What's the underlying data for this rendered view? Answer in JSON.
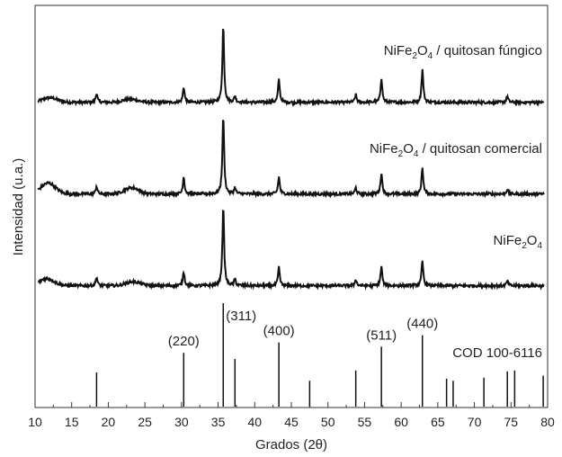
{
  "chart_data": {
    "type": "line",
    "xlabel": "Grados (2θ)",
    "ylabel": "Intensidad (u.a.)",
    "xlim": [
      10,
      80
    ],
    "x_ticks": [
      10,
      15,
      20,
      25,
      30,
      35,
      40,
      45,
      50,
      55,
      60,
      65,
      70,
      75,
      80
    ],
    "y_ticks_shown": false,
    "grid": false,
    "series": [
      {
        "name": "NiFe2O4 / quitosan fúngico",
        "label_parts": [
          "NiFe",
          "2",
          "O",
          "4",
          " / quitosan fúngico"
        ],
        "baseline": 0.05,
        "broad_humps": [
          [
            12,
            0.06
          ],
          [
            23,
            0.04
          ]
        ],
        "peaks": [
          [
            18.4,
            0.12
          ],
          [
            30.3,
            0.2
          ],
          [
            35.7,
            1.0
          ],
          [
            37.3,
            0.08
          ],
          [
            43.3,
            0.3
          ],
          [
            53.8,
            0.1
          ],
          [
            57.3,
            0.32
          ],
          [
            62.9,
            0.43
          ],
          [
            74.5,
            0.08
          ]
        ]
      },
      {
        "name": "NiFe2O4 / quitosan comercial",
        "label_parts": [
          "NiFe",
          "2",
          "O",
          "4",
          " / quitosan comercial"
        ],
        "baseline": 0.05,
        "broad_humps": [
          [
            11.8,
            0.14
          ],
          [
            23.2,
            0.08
          ]
        ],
        "peaks": [
          [
            18.4,
            0.1
          ],
          [
            30.3,
            0.22
          ],
          [
            35.7,
            1.0
          ],
          [
            37.3,
            0.08
          ],
          [
            43.3,
            0.22
          ],
          [
            53.8,
            0.08
          ],
          [
            57.3,
            0.27
          ],
          [
            62.9,
            0.34
          ],
          [
            74.5,
            0.06
          ]
        ]
      },
      {
        "name": "NiFe2O4",
        "label_parts": [
          "NiFe",
          "2",
          "O",
          "4",
          ""
        ],
        "baseline": 0.05,
        "broad_humps": [
          [
            11.6,
            0.09
          ],
          [
            23.4,
            0.05
          ]
        ],
        "peaks": [
          [
            18.4,
            0.11
          ],
          [
            30.3,
            0.18
          ],
          [
            35.7,
            1.0
          ],
          [
            37.3,
            0.08
          ],
          [
            43.3,
            0.23
          ],
          [
            53.8,
            0.08
          ],
          [
            57.3,
            0.24
          ],
          [
            62.9,
            0.31
          ],
          [
            74.5,
            0.06
          ]
        ]
      }
    ],
    "reference": {
      "name": "COD 100-6116",
      "type": "bar",
      "lines": [
        [
          18.4,
          0.33
        ],
        [
          30.3,
          0.52
        ],
        [
          35.7,
          1.0
        ],
        [
          37.3,
          0.46
        ],
        [
          43.3,
          0.62
        ],
        [
          47.5,
          0.25
        ],
        [
          53.8,
          0.35
        ],
        [
          57.3,
          0.58
        ],
        [
          62.9,
          0.69
        ],
        [
          66.2,
          0.27
        ],
        [
          67.1,
          0.25
        ],
        [
          71.3,
          0.28
        ],
        [
          74.5,
          0.34
        ],
        [
          75.5,
          0.35
        ],
        [
          79.4,
          0.3
        ]
      ],
      "hkl_labels": [
        {
          "x": 30.3,
          "text": "(220)"
        },
        {
          "x": 35.7,
          "text": "(311)"
        },
        {
          "x": 43.3,
          "text": "(400)"
        },
        {
          "x": 57.3,
          "text": "(511)"
        },
        {
          "x": 62.9,
          "text": "(440)"
        }
      ]
    },
    "colors": {
      "line": "#111111",
      "axes": "#333333",
      "background": "#ffffff"
    }
  }
}
